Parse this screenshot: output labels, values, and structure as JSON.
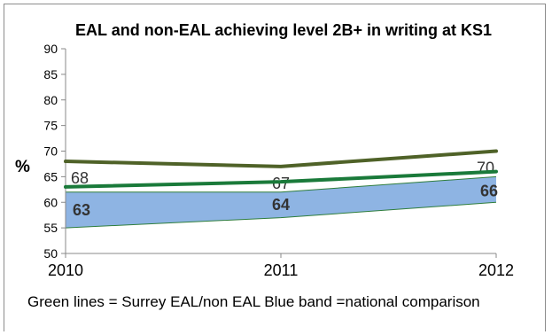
{
  "chart_data": {
    "type": "line",
    "title": "EAL and non-EAL achieving level 2B+ in writing at KS1",
    "ylabel": "%",
    "xlabel": "",
    "categories": [
      "2010",
      "2011",
      "2012"
    ],
    "ylim": [
      50,
      90
    ],
    "yticks": [
      "50",
      "55",
      "60",
      "65",
      "70",
      "75",
      "80",
      "85",
      "90"
    ],
    "grid": false,
    "legend": "none",
    "series": [
      {
        "values": [
          68,
          67,
          70
        ],
        "color": "#4f6228",
        "labels": [
          "68",
          "67",
          "70"
        ],
        "label_style": "light"
      },
      {
        "values": [
          63,
          64,
          66
        ],
        "color": "#1a7a3a",
        "labels": [
          "63",
          "64",
          "66"
        ],
        "label_style": "bold"
      }
    ],
    "band": {
      "upper": [
        62,
        62,
        65
      ],
      "lower": [
        55,
        57,
        60
      ],
      "fill": "#8eb4e3"
    },
    "caption": "Green lines = Surrey EAL/non EAL Blue band  =national comparison"
  }
}
